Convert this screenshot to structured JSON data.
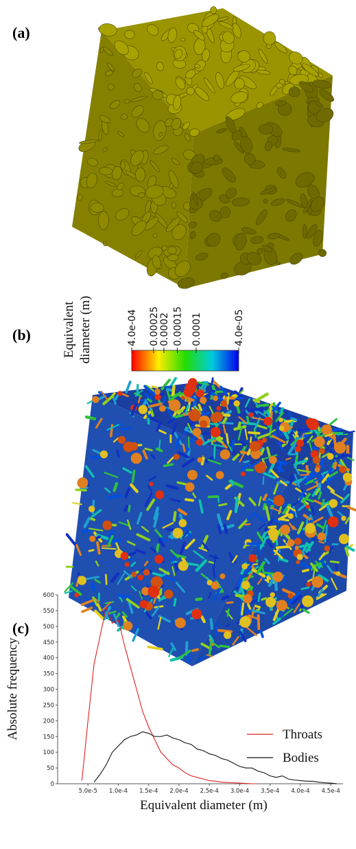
{
  "panels": {
    "a": {
      "label": "(a)"
    },
    "b": {
      "label": "(b)",
      "colorbar": {
        "title": [
          "Equivalent",
          "diameter (m)"
        ],
        "log": true,
        "lim": [
          0.0004,
          4e-05
        ],
        "ticks": [
          {
            "value": 0.0004,
            "label": "4.0e-04"
          },
          0.00025,
          0.0002,
          0.00015,
          0.0001,
          {
            "value": 4e-05,
            "label": "4.0e-05"
          }
        ]
      }
    },
    "c": {
      "label": "(c)"
    }
  },
  "chart_data": {
    "type": "line",
    "xlabel": "Equivalent diameter (m)",
    "ylabel": "Absolute frequency",
    "legend": "center right",
    "x": [
      4e-05,
      5e-05,
      6e-05,
      7e-05,
      8e-05,
      9e-05,
      0.0001,
      0.00011,
      0.00012,
      0.00013,
      0.00014,
      0.00015,
      0.00016,
      0.00017,
      0.00018,
      0.00019,
      0.0002,
      0.00021,
      0.00022,
      0.00023,
      0.00024,
      0.00025,
      0.00026,
      0.00027,
      0.00028,
      0.00029,
      0.0003,
      0.00031,
      0.00032,
      0.00033,
      0.00034,
      0.00035,
      0.00036,
      0.00037,
      0.00038,
      0.00039,
      0.0004,
      0.00041,
      0.00042,
      0.00043,
      0.00044,
      0.00045,
      0.00046
    ],
    "series": [
      {
        "name": "Throats",
        "color": "#e02020",
        "values": [
          10,
          200,
          380,
          470,
          560,
          510,
          520,
          440,
          370,
          300,
          230,
          180,
          140,
          100,
          80,
          60,
          50,
          35,
          25,
          20,
          15,
          10,
          8,
          5,
          4,
          3,
          2,
          1,
          0,
          0,
          null,
          null,
          null,
          null,
          null,
          null,
          null,
          null,
          null,
          null,
          null,
          null,
          null
        ]
      },
      {
        "name": "Bodies",
        "color": "#111111",
        "values": [
          null,
          null,
          5,
          30,
          60,
          100,
          120,
          140,
          150,
          155,
          165,
          160,
          150,
          150,
          155,
          145,
          140,
          130,
          125,
          110,
          105,
          95,
          90,
          80,
          75,
          65,
          55,
          50,
          50,
          40,
          35,
          25,
          20,
          25,
          15,
          12,
          10,
          8,
          8,
          5,
          3,
          2,
          0
        ]
      }
    ],
    "xlim": [
      0,
      0.00047
    ],
    "xticks": [
      {
        "value": 5e-05,
        "label": "5.0e-5"
      },
      {
        "value": 0.0001,
        "label": "1.0e-4"
      },
      {
        "value": 0.00015,
        "label": "1.5e-4"
      },
      {
        "value": 0.0002,
        "label": "2.0e-4"
      },
      {
        "value": 0.00025,
        "label": "2.5e-4"
      },
      {
        "value": 0.0003,
        "label": "3.0e-4"
      },
      {
        "value": 0.00035,
        "label": "3.5e-4"
      },
      {
        "value": 0.0004,
        "label": "4.0e-4"
      },
      {
        "value": 0.00045,
        "label": "4.5e-4"
      }
    ],
    "ylim": [
      0,
      600
    ],
    "yticks": [
      0,
      50,
      100,
      150,
      200,
      250,
      300,
      350,
      400,
      450,
      500,
      550,
      600
    ]
  }
}
